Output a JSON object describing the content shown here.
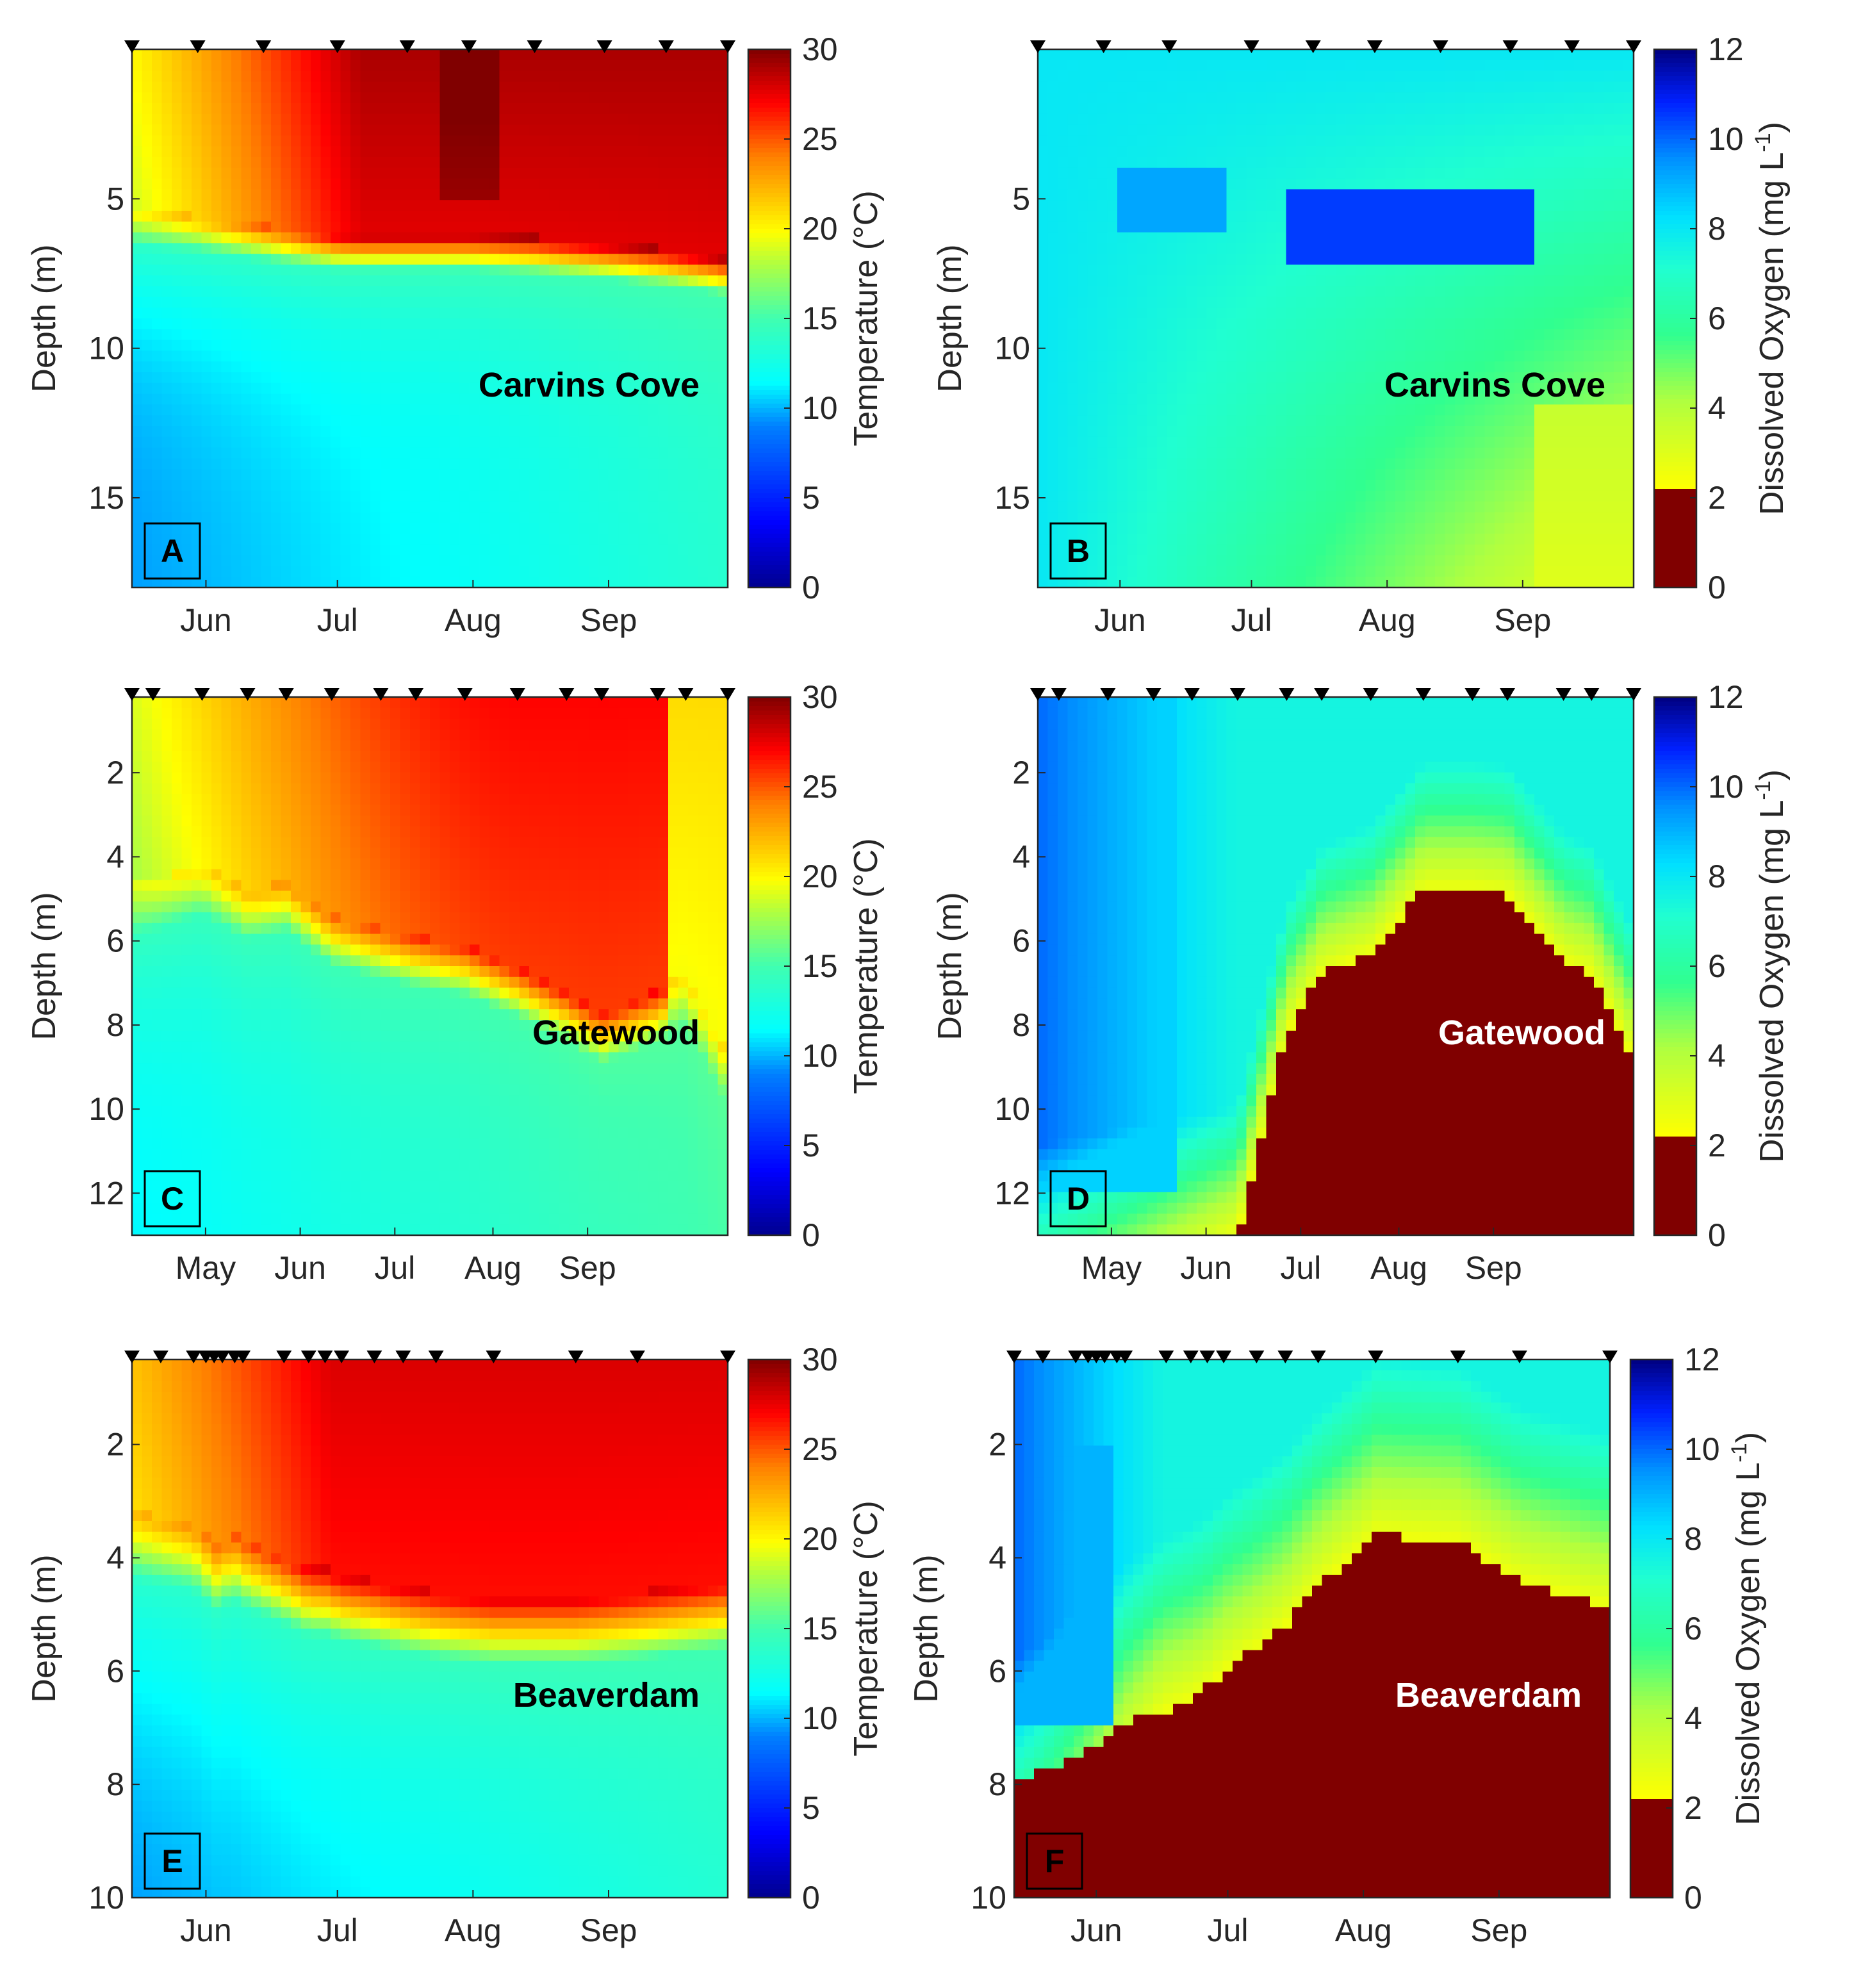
{
  "chart_data": [
    {
      "type": "heatmap",
      "panel": "A",
      "site": "Carvins Cove",
      "variable": "Temperature",
      "xlabel": "",
      "ylabel": "Depth (m)",
      "x_months": [
        "Jun",
        "Jul",
        "Aug",
        "Sep"
      ],
      "xlim_days": [
        0,
        145
      ],
      "x_month_days": [
        18,
        50,
        83,
        116
      ],
      "ylim": [
        0,
        18
      ],
      "yticks": [
        5,
        10,
        15
      ],
      "sample_days": [
        0,
        16,
        32,
        50,
        67,
        82,
        98,
        115,
        130,
        145
      ],
      "surface_value": 29,
      "bottom_value": 10,
      "thermocline_depth": [
        6.2,
        6.4,
        6.7,
        7.0,
        7.0,
        7.0,
        7.1,
        7.3,
        7.5,
        7.8
      ],
      "colorbar": {
        "label": "Temperature (°C)",
        "min": 0,
        "max": 30,
        "ticks": [
          0,
          5,
          10,
          15,
          20,
          25,
          30
        ]
      }
    },
    {
      "type": "heatmap",
      "panel": "B",
      "site": "Carvins Cove",
      "variable": "Dissolved Oxygen",
      "xlabel": "",
      "ylabel": "Depth (m)",
      "x_months": [
        "Jun",
        "Jul",
        "Aug",
        "Sep"
      ],
      "xlim_days": [
        0,
        145
      ],
      "x_month_days": [
        20,
        52,
        85,
        118
      ],
      "ylim": [
        0,
        18
      ],
      "yticks": [
        5,
        10,
        15
      ],
      "sample_days": [
        0,
        16,
        32,
        52,
        67,
        82,
        98,
        115,
        130,
        145
      ],
      "max_do_depth": 6,
      "max_do_value": 11,
      "colorbar": {
        "label_main": "Dissolved Oxygen (mg L",
        "label_sup": "-1",
        "label_end": ")",
        "min": 0,
        "max": 12,
        "ticks": [
          0,
          2,
          4,
          6,
          8,
          10,
          12
        ],
        "anoxic_threshold": 2.2
      }
    },
    {
      "type": "heatmap",
      "panel": "C",
      "site": "Gatewood",
      "variable": "Temperature",
      "xlabel": "",
      "ylabel": "Depth (m)",
      "x_months": [
        "May",
        "Jun",
        "Jul",
        "Aug",
        "Sep"
      ],
      "xlim_days": [
        0,
        170
      ],
      "x_month_days": [
        21,
        48,
        75,
        103,
        130
      ],
      "ylim": [
        0.2,
        13
      ],
      "yticks": [
        2,
        4,
        6,
        8,
        10,
        12
      ],
      "sample_days": [
        0,
        6,
        20,
        33,
        44,
        57,
        71,
        81,
        95,
        110,
        124,
        134,
        150,
        158,
        170
      ],
      "thermocline_depth": [
        5.5,
        5.4,
        5.0,
        5.6,
        5.4,
        6.2,
        6.5,
        6.7,
        6.9,
        7.4,
        8.0,
        8.5,
        8.0,
        7.6,
        9.5
      ]
    },
    {
      "type": "heatmap",
      "panel": "D",
      "site": "Gatewood",
      "variable": "Dissolved Oxygen",
      "xlabel": "",
      "ylabel": "Depth (m)",
      "x_months": [
        "May",
        "Jun",
        "Jul",
        "Aug",
        "Sep"
      ],
      "xlim_days": [
        0,
        170
      ],
      "x_month_days": [
        21,
        48,
        75,
        103,
        130
      ],
      "ylim": [
        0.2,
        13
      ],
      "yticks": [
        2,
        4,
        6,
        8,
        10,
        12
      ],
      "sample_days": [
        0,
        6,
        20,
        33,
        44,
        57,
        71,
        81,
        95,
        110,
        124,
        134,
        150,
        158,
        170
      ],
      "anoxic_top_depth": [
        13,
        13,
        13,
        13,
        13,
        13,
        8.2,
        6.8,
        6.3,
        4.8,
        4.8,
        4.9,
        6.5,
        6.8,
        8.8
      ]
    },
    {
      "type": "heatmap",
      "panel": "E",
      "site": "Beaverdam",
      "variable": "Temperature",
      "xlabel": "",
      "ylabel": "Depth (m)",
      "x_months": [
        "Jun",
        "Jul",
        "Aug",
        "Sep"
      ],
      "xlim_days": [
        0,
        145
      ],
      "x_month_days": [
        18,
        50,
        83,
        116
      ],
      "ylim": [
        0.5,
        10
      ],
      "yticks": [
        2,
        4,
        6,
        8,
        10
      ],
      "sample_days": [
        0,
        7,
        15,
        18,
        20,
        22,
        25,
        27,
        37,
        43,
        47,
        51,
        59,
        66,
        74,
        88,
        108,
        123,
        145
      ],
      "thermocline_depth": [
        4.0,
        4.1,
        4.2,
        4.4,
        4.6,
        4.5,
        4.4,
        4.5,
        4.8,
        5.0,
        5.0,
        5.1,
        5.2,
        5.3,
        5.4,
        5.5,
        5.5,
        5.4,
        5.2
      ]
    },
    {
      "type": "heatmap",
      "panel": "F",
      "site": "Beaverdam",
      "variable": "Dissolved Oxygen",
      "xlabel": "",
      "ylabel": "Depth (m)",
      "x_months": [
        "Jun",
        "Jul",
        "Aug",
        "Sep"
      ],
      "xlim_days": [
        0,
        145
      ],
      "x_month_days": [
        20,
        52,
        85,
        118
      ],
      "ylim": [
        0.5,
        10
      ],
      "yticks": [
        2,
        4,
        6,
        8,
        10
      ],
      "sample_days": [
        0,
        7,
        15,
        18,
        20,
        22,
        25,
        27,
        37,
        43,
        47,
        51,
        59,
        66,
        74,
        88,
        108,
        123,
        145
      ],
      "anoxic_top_depth": [
        7.9,
        7.8,
        7.5,
        7.4,
        7.3,
        7.2,
        7.0,
        6.9,
        6.7,
        6.5,
        6.3,
        6.0,
        5.6,
        5.2,
        4.5,
        3.6,
        3.7,
        4.4,
        4.9
      ]
    }
  ]
}
